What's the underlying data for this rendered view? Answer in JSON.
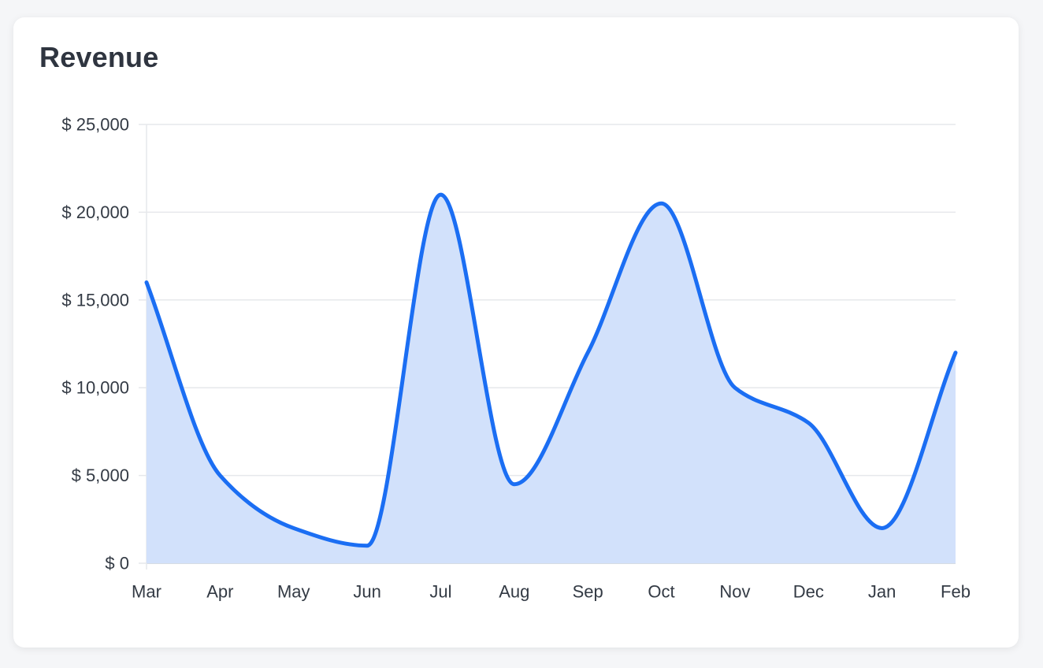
{
  "card": {
    "title": "Revenue"
  },
  "colors": {
    "line": "#1b6ef3",
    "fill": "#d2e1fb",
    "grid": "#e6e8eb",
    "text": "#333a44"
  },
  "chart_data": {
    "type": "area",
    "title": "Revenue",
    "xlabel": "",
    "ylabel": "",
    "categories": [
      "Mar",
      "Apr",
      "May",
      "Jun",
      "Jul",
      "Aug",
      "Sep",
      "Oct",
      "Nov",
      "Dec",
      "Jan",
      "Feb"
    ],
    "series": [
      {
        "values": [
          16000,
          5000,
          2000,
          1000,
          21000,
          4500,
          12000,
          20500,
          10000,
          8000,
          2000,
          12000
        ]
      }
    ],
    "ylim": [
      0,
      25000
    ],
    "yticks": [
      0,
      5000,
      10000,
      15000,
      20000,
      25000
    ],
    "ytick_labels": [
      "$ 0",
      "$ 5,000",
      "$ 10,000",
      "$ 15,000",
      "$ 20,000",
      "$ 25,000"
    ],
    "grid": true,
    "legend": "none",
    "smooth": true
  }
}
